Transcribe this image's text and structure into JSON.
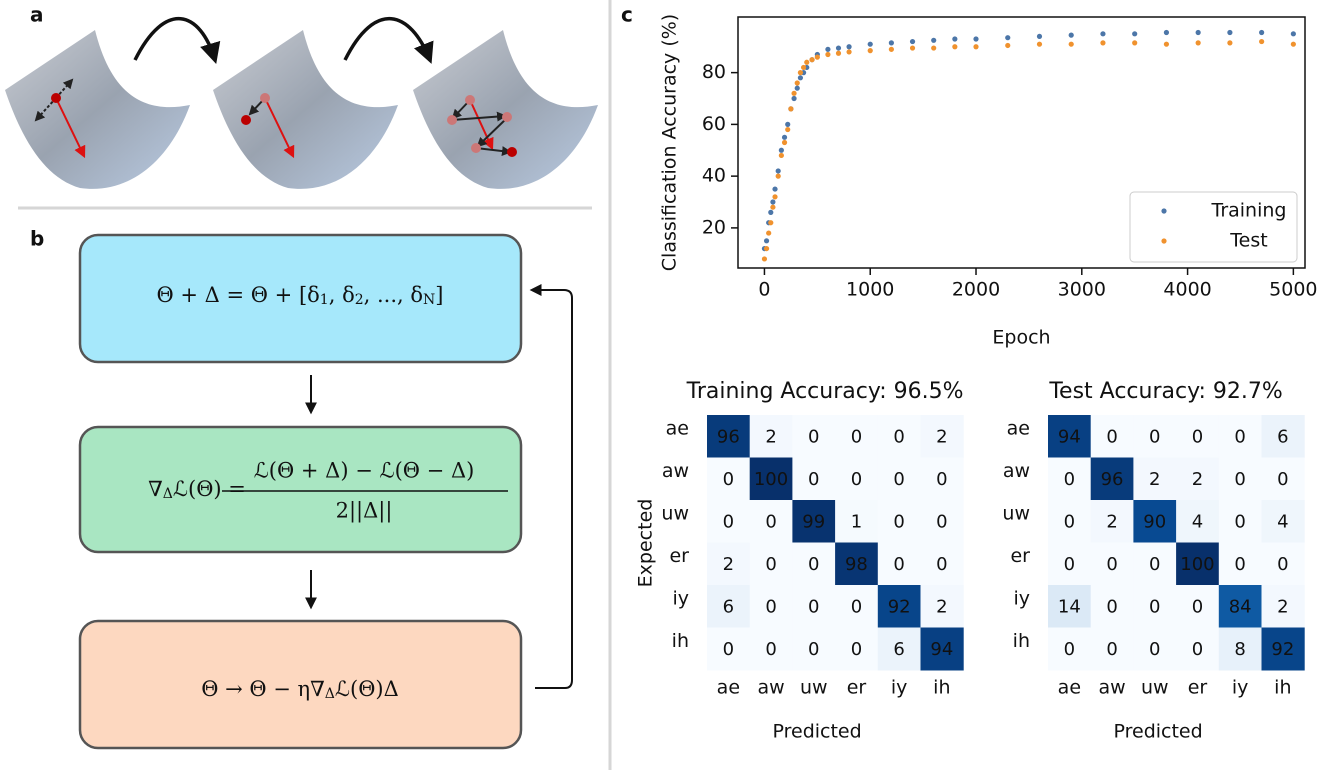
{
  "panel_labels": [
    "a",
    "b",
    "c"
  ],
  "flow": [
    {
      "parts": [
        "Θ + Δ = Θ + [δ",
        "1",
        ", δ",
        "2",
        ", ..., δ",
        "N",
        "]"
      ]
    },
    {
      "parts": [
        "∇",
        "Δ",
        "ℒ(Θ) ="
      ],
      "numerator": "ℒ(Θ + Δ) − ℒ(Θ − Δ)",
      "denominator": "2||Δ||"
    },
    {
      "parts": [
        "Θ → Θ − η∇",
        "Δ",
        "ℒ(Θ)Δ"
      ]
    }
  ],
  "chart_data": [
    {
      "type": "scatter",
      "xlabel": "Epoch",
      "ylabel": "Classification Accuracy (%)",
      "x": [
        0,
        20,
        40,
        60,
        80,
        100,
        130,
        160,
        190,
        220,
        250,
        280,
        310,
        340,
        370,
        400,
        450,
        500,
        600,
        700,
        800,
        1000,
        1200,
        1400,
        1600,
        1800,
        2000,
        2300,
        2600,
        2900,
        3200,
        3500,
        3800,
        4100,
        4400,
        4700,
        5000
      ],
      "series": [
        {
          "name": "Training",
          "color": "#4c76a8",
          "values": [
            12,
            15,
            22,
            26,
            30,
            35,
            42,
            50,
            55,
            60,
            66,
            70,
            74,
            78,
            80,
            82,
            85,
            87,
            89,
            89.5,
            90,
            91,
            91.5,
            92,
            92.5,
            93,
            93,
            93.5,
            94,
            94.5,
            95,
            95,
            95.5,
            95.5,
            95.5,
            95.5,
            95
          ]
        },
        {
          "name": "Test",
          "color": "#f0922e",
          "values": [
            8,
            12,
            18,
            22,
            28,
            32,
            40,
            48,
            53,
            58,
            66,
            72,
            76,
            80,
            82,
            84,
            85,
            86,
            87,
            87.5,
            88,
            88.5,
            89,
            89.5,
            89.5,
            90,
            90,
            90.5,
            91,
            91,
            91.5,
            91.5,
            91,
            91.5,
            91.5,
            92,
            91
          ]
        }
      ],
      "xlim": [
        -250,
        5110
      ],
      "ylim": [
        4.5,
        101.5
      ],
      "xticks": [
        0,
        1000,
        2000,
        3000,
        4000,
        5000
      ],
      "yticks": [
        20,
        40,
        60,
        80
      ],
      "legend": "lower right"
    },
    {
      "type": "heatmap",
      "title": "Training Accuracy: 96.5%",
      "xlabel": "Predicted",
      "ylabel": "Expected",
      "x_categories": [
        "ae",
        "aw",
        "uw",
        "er",
        "iy",
        "ih"
      ],
      "y_categories": [
        "ae",
        "aw",
        "uw",
        "er",
        "iy",
        "ih"
      ],
      "colormap": "Blues",
      "vlim": [
        0,
        100
      ],
      "values": [
        [
          96,
          2,
          0,
          0,
          0,
          2
        ],
        [
          0,
          100,
          0,
          0,
          0,
          0
        ],
        [
          0,
          0,
          99,
          1,
          0,
          0
        ],
        [
          2,
          0,
          0,
          98,
          0,
          0
        ],
        [
          6,
          0,
          0,
          0,
          92,
          2
        ],
        [
          0,
          0,
          0,
          0,
          6,
          94
        ]
      ]
    },
    {
      "type": "heatmap",
      "title": "Test Accuracy: 92.7%",
      "xlabel": "Predicted",
      "x_categories": [
        "ae",
        "aw",
        "uw",
        "er",
        "iy",
        "ih"
      ],
      "y_categories": [
        "ae",
        "aw",
        "uw",
        "er",
        "iy",
        "ih"
      ],
      "colormap": "Blues",
      "vlim": [
        0,
        100
      ],
      "values": [
        [
          94,
          0,
          0,
          0,
          0,
          6
        ],
        [
          0,
          96,
          2,
          2,
          0,
          0
        ],
        [
          0,
          2,
          90,
          4,
          0,
          4
        ],
        [
          0,
          0,
          0,
          100,
          0,
          0
        ],
        [
          14,
          0,
          0,
          0,
          84,
          2
        ],
        [
          0,
          0,
          0,
          0,
          8,
          92
        ]
      ]
    }
  ]
}
